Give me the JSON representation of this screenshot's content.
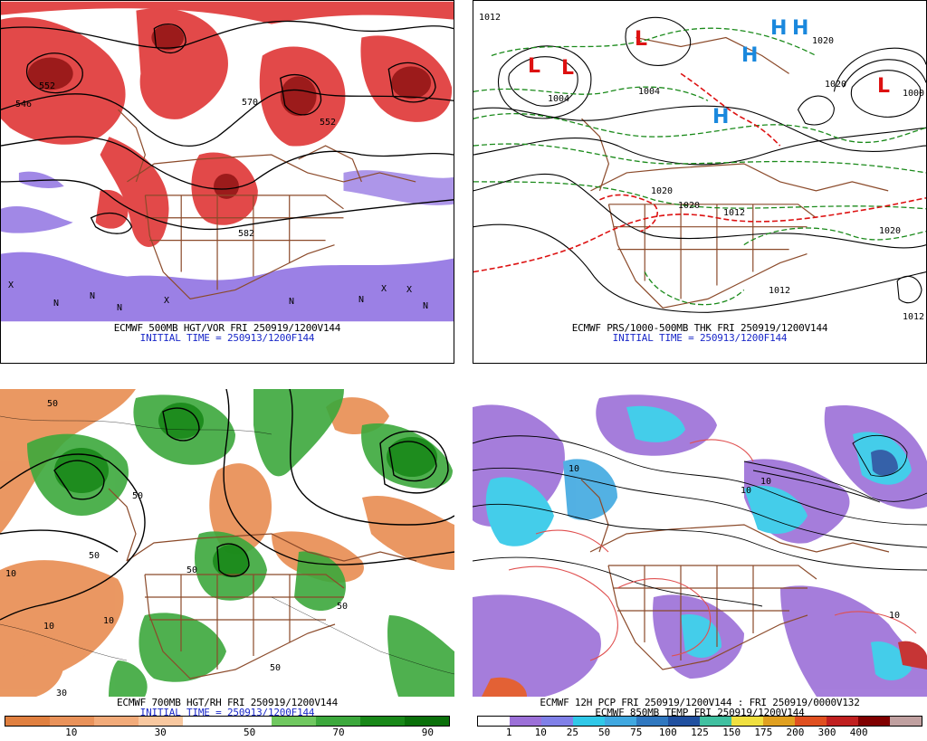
{
  "panels": {
    "tl": {
      "caption1": "ECMWF 500MB HGT/VOR FRI 250919/1200V144",
      "caption2": "INITIAL TIME = 250913/1200F144",
      "labels": [
        "552",
        "546",
        "570",
        "582",
        "552"
      ],
      "markers": [
        "X",
        "N",
        "N",
        "N",
        "X",
        "N",
        "N",
        "X",
        "N",
        "X"
      ]
    },
    "tr": {
      "caption1": "ECMWF PRS/1000-500MB THK FRI 250919/1200V144",
      "caption2": "INITIAL TIME = 250913/1200F144",
      "lows": [
        "L",
        "L",
        "L",
        "L"
      ],
      "highs": [
        "H",
        "H",
        "H",
        "H"
      ],
      "labels": [
        "1012",
        "1004",
        "1004",
        "1020",
        "1020",
        "1012",
        "1020",
        "1020",
        "1012",
        "1000",
        "1020",
        "1012"
      ]
    },
    "bl": {
      "caption1": "ECMWF 700MB HGT/RH FRI 250919/1200V144",
      "caption2": "INITIAL TIME = 250913/1200F144",
      "labels": [
        "50",
        "10",
        "50",
        "50",
        "50",
        "10",
        "50",
        "50",
        "10",
        "30"
      ],
      "colorbar": {
        "colors": [
          "#e08040",
          "#e9925a",
          "#f2ab7a",
          "#f8c8a0",
          "#ffffff",
          "#ffffff",
          "#70c860",
          "#3ca83c",
          "#188818",
          "#0a700a"
        ],
        "ticks": [
          "10",
          "30",
          "50",
          "70",
          "90"
        ]
      }
    },
    "br": {
      "caption1": "ECMWF 12H PCP FRI 250919/1200V144 : FRI 250919/0000V132",
      "caption2": "ECMWF 850MB TEMP FRI 250919/1200V144",
      "labels": [
        "10",
        "10",
        "10",
        "10"
      ],
      "colorbar": {
        "colors": [
          "#ffffff",
          "#9c70d8",
          "#8080e8",
          "#30c8e8",
          "#40a8e0",
          "#3078c0",
          "#2050a0",
          "#40c0a0",
          "#f0e040",
          "#e0a020",
          "#e05020",
          "#c02020",
          "#800000",
          "#c0a0a0"
        ],
        "ticks": [
          "1",
          "10",
          "25",
          "50",
          "75",
          "100",
          "125",
          "150",
          "175",
          "200",
          "300",
          "400"
        ]
      }
    }
  },
  "colors": {
    "vorticity": "#dd2a2a",
    "vorticity_dark": "#8b1010",
    "negative_vorticity": "#8a6ae0",
    "borders": "#8b4a2a",
    "contour": "#000000",
    "thickness_cold": "#1a8a1a",
    "thickness_warm": "#dd1111",
    "low_marker": "#dd1111",
    "high_marker": "#1a88dd",
    "caption_blue": "#1a28c8"
  }
}
